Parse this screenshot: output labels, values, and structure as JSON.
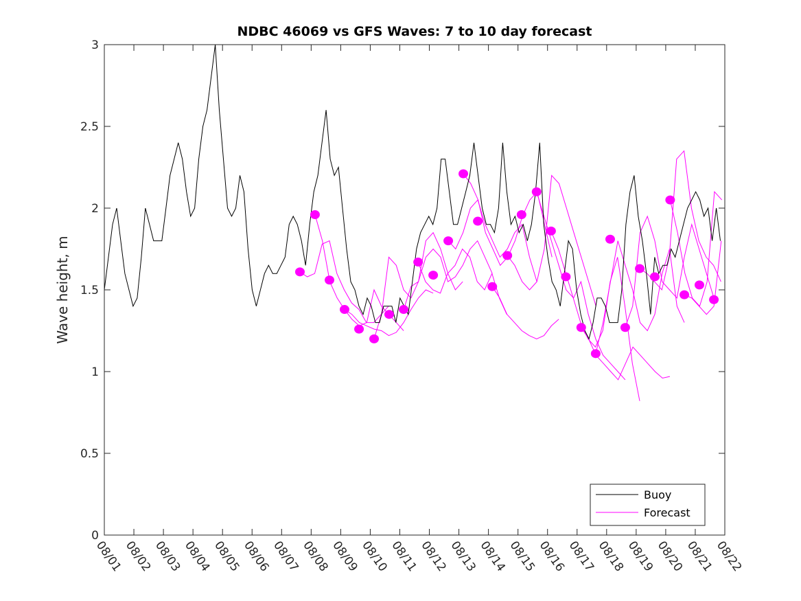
{
  "chart_data": {
    "type": "line",
    "title": "NDBC 46069 vs GFS Waves: 7 to 10 day forecast",
    "xlabel": "",
    "ylabel": "Wave height, m",
    "xlim": [
      0,
      21
    ],
    "ylim": [
      0,
      3
    ],
    "x_unit": "days since 08/01",
    "x_tick_labels": [
      "08/01",
      "08/02",
      "08/03",
      "08/04",
      "08/05",
      "08/06",
      "08/07",
      "08/08",
      "08/09",
      "08/10",
      "08/11",
      "08/12",
      "08/13",
      "08/14",
      "08/15",
      "08/16",
      "08/17",
      "08/18",
      "08/19",
      "08/20",
      "08/21",
      "08/22"
    ],
    "y_ticks": [
      0,
      0.5,
      1,
      1.5,
      2,
      2.5,
      3
    ],
    "y_tick_labels": [
      "0",
      "0.5",
      "1",
      "1.5",
      "2",
      "2.5",
      "3"
    ],
    "legend": {
      "placement": "bottom-right",
      "entries": [
        "Buoy",
        "Forecast"
      ]
    },
    "colors": {
      "buoy": "#000000",
      "forecast": "#ff00ff"
    },
    "buoy": {
      "name": "Buoy",
      "start_day": 0,
      "step_days": 0.139,
      "values": [
        1.5,
        1.7,
        1.9,
        2.0,
        1.8,
        1.6,
        1.5,
        1.4,
        1.45,
        1.7,
        2.0,
        1.9,
        1.8,
        1.8,
        1.8,
        2.0,
        2.2,
        2.3,
        2.4,
        2.3,
        2.1,
        1.95,
        2.0,
        2.3,
        2.5,
        2.6,
        2.8,
        3.0,
        2.6,
        2.3,
        2.0,
        1.95,
        2.0,
        2.2,
        2.1,
        1.75,
        1.5,
        1.4,
        1.5,
        1.6,
        1.65,
        1.6,
        1.6,
        1.65,
        1.7,
        1.9,
        1.95,
        1.9,
        1.8,
        1.65,
        1.9,
        2.1,
        2.2,
        2.4,
        2.6,
        2.3,
        2.2,
        2.25,
        2.0,
        1.75,
        1.55,
        1.5,
        1.4,
        1.35,
        1.45,
        1.4,
        1.3,
        1.3,
        1.4,
        1.4,
        1.4,
        1.3,
        1.45,
        1.4,
        1.35,
        1.55,
        1.75,
        1.85,
        1.9,
        1.95,
        1.9,
        2.0,
        2.3,
        2.3,
        2.1,
        1.9,
        1.9,
        2.0,
        2.1,
        2.2,
        2.4,
        2.2,
        2.0,
        1.9,
        1.9,
        1.85,
        2.0,
        2.4,
        2.1,
        1.9,
        1.95,
        1.85,
        1.9,
        1.8,
        1.9,
        2.1,
        2.4,
        1.9,
        1.7,
        1.55,
        1.5,
        1.4,
        1.6,
        1.8,
        1.75,
        1.5,
        1.35,
        1.25,
        1.2,
        1.3,
        1.45,
        1.45,
        1.4,
        1.3,
        1.3,
        1.3,
        1.5,
        1.9,
        2.1,
        2.2,
        1.95,
        1.8,
        1.6,
        1.35,
        1.7,
        1.6,
        1.65,
        1.65,
        1.75,
        1.7,
        1.8,
        1.9,
        2.0,
        2.05,
        2.1,
        2.05,
        1.95,
        2.0,
        1.8,
        2.0,
        1.8
      ]
    },
    "forecast_step_days": 0.25,
    "forecasts": [
      {
        "start_day": 6.62,
        "values": [
          1.61,
          1.58,
          1.6,
          1.78,
          1.8,
          1.6,
          1.5,
          1.42,
          1.38,
          1.3,
          1.3,
          1.35,
          1.4
        ]
      },
      {
        "start_day": 7.13,
        "values": [
          1.96,
          1.8,
          1.55,
          1.45,
          1.38,
          1.32,
          1.28,
          1.3,
          1.5,
          1.4,
          1.35,
          1.3,
          1.25
        ]
      },
      {
        "start_day": 8.13,
        "values": [
          1.38,
          1.35,
          1.3,
          1.28,
          1.26,
          1.25,
          1.22,
          1.24,
          1.3,
          1.38,
          1.45,
          1.5,
          1.48
        ]
      },
      {
        "start_day": 9.13,
        "values": [
          1.2,
          1.35,
          1.7,
          1.65,
          1.5,
          1.45,
          1.55,
          1.8,
          1.85,
          1.75,
          1.6,
          1.5,
          1.55
        ]
      },
      {
        "start_day": 10.13,
        "values": [
          1.38,
          1.52,
          1.55,
          1.7,
          1.75,
          1.7,
          1.55,
          1.58,
          1.65,
          1.75,
          1.8,
          1.7,
          1.6
        ]
      },
      {
        "start_day": 10.62,
        "values": [
          1.67,
          1.55,
          1.5,
          1.48,
          1.6,
          1.65,
          1.75,
          1.7,
          1.55,
          1.5,
          1.6,
          1.45,
          1.35
        ]
      },
      {
        "start_day": 11.64,
        "values": [
          1.8,
          1.75,
          1.85,
          2.0,
          2.05,
          1.9,
          1.8,
          1.7,
          1.75,
          1.85,
          1.9,
          1.7,
          1.55
        ]
      },
      {
        "start_day": 12.15,
        "values": [
          2.21,
          2.15,
          2.05,
          1.85,
          1.75,
          1.65,
          1.7,
          1.8,
          1.95,
          2.05,
          2.1,
          1.9,
          1.7
        ]
      },
      {
        "start_day": 13.13,
        "values": [
          1.52,
          1.45,
          1.35,
          1.3,
          1.25,
          1.22,
          1.2,
          1.22,
          1.28,
          1.32
        ]
      },
      {
        "start_day": 13.64,
        "values": [
          1.71,
          1.65,
          1.55,
          1.5,
          1.55,
          1.75,
          2.2,
          2.15,
          2.0,
          1.85,
          1.7,
          1.55,
          1.4
        ]
      },
      {
        "start_day": 14.63,
        "values": [
          2.1,
          1.95,
          1.8,
          1.65,
          1.5,
          1.45,
          1.55,
          1.35,
          1.2,
          1.1,
          1.05,
          1.0,
          0.95
        ]
      },
      {
        "start_day": 15.12,
        "values": [
          1.86,
          1.75,
          1.6,
          1.45,
          1.3,
          1.2,
          1.15,
          1.25,
          1.55,
          1.7,
          1.4,
          1.05,
          0.82
        ]
      },
      {
        "start_day": 16.14,
        "values": [
          1.27,
          1.2,
          1.1,
          1.05,
          1.0,
          0.95,
          1.05,
          1.15,
          1.1,
          1.05,
          1.0,
          0.96,
          0.97
        ]
      },
      {
        "start_day": 16.63,
        "values": [
          1.11,
          1.3,
          1.55,
          1.8,
          1.65,
          1.5,
          1.3,
          1.25,
          1.35,
          1.6,
          1.75,
          1.4,
          1.3
        ]
      },
      {
        "start_day": 17.63,
        "values": [
          1.27,
          1.4,
          1.85,
          1.95,
          1.8,
          1.55,
          1.5,
          1.45,
          1.7,
          1.9,
          1.75,
          1.6,
          1.45
        ]
      },
      {
        "start_day": 18.12,
        "values": [
          1.63,
          1.6,
          1.55,
          1.5,
          1.7,
          2.3,
          2.35,
          2.0,
          1.8,
          1.7,
          1.65,
          1.55,
          1.5
        ]
      },
      {
        "start_day": 19.15,
        "values": [
          2.05,
          1.85,
          1.6,
          1.45,
          1.4,
          1.55,
          2.1,
          2.05,
          1.7,
          1.45,
          1.35,
          1.3,
          1.25
        ]
      },
      {
        "start_day": 19.63,
        "values": [
          1.47,
          1.45,
          1.4,
          1.35,
          1.4,
          1.8,
          1.95,
          1.65,
          1.45,
          1.4,
          1.38,
          1.38
        ]
      }
    ],
    "forecast_points": {
      "days": [
        6.62,
        7.13,
        7.62,
        8.13,
        8.62,
        9.13,
        9.64,
        10.13,
        10.62,
        11.13,
        11.64,
        12.15,
        12.64,
        13.13,
        13.64,
        14.12,
        14.63,
        15.12,
        15.62,
        16.14,
        16.63,
        17.12,
        17.63,
        18.12,
        18.63,
        19.15,
        19.63,
        20.14,
        20.63
      ],
      "values": [
        1.61,
        1.96,
        1.56,
        1.38,
        1.26,
        1.2,
        1.35,
        1.38,
        1.67,
        1.59,
        1.8,
        2.21,
        1.92,
        1.52,
        1.71,
        1.96,
        2.1,
        1.86,
        1.58,
        1.27,
        1.11,
        1.81,
        1.27,
        1.63,
        1.58,
        2.05,
        1.47,
        1.53,
        1.44
      ]
    }
  }
}
